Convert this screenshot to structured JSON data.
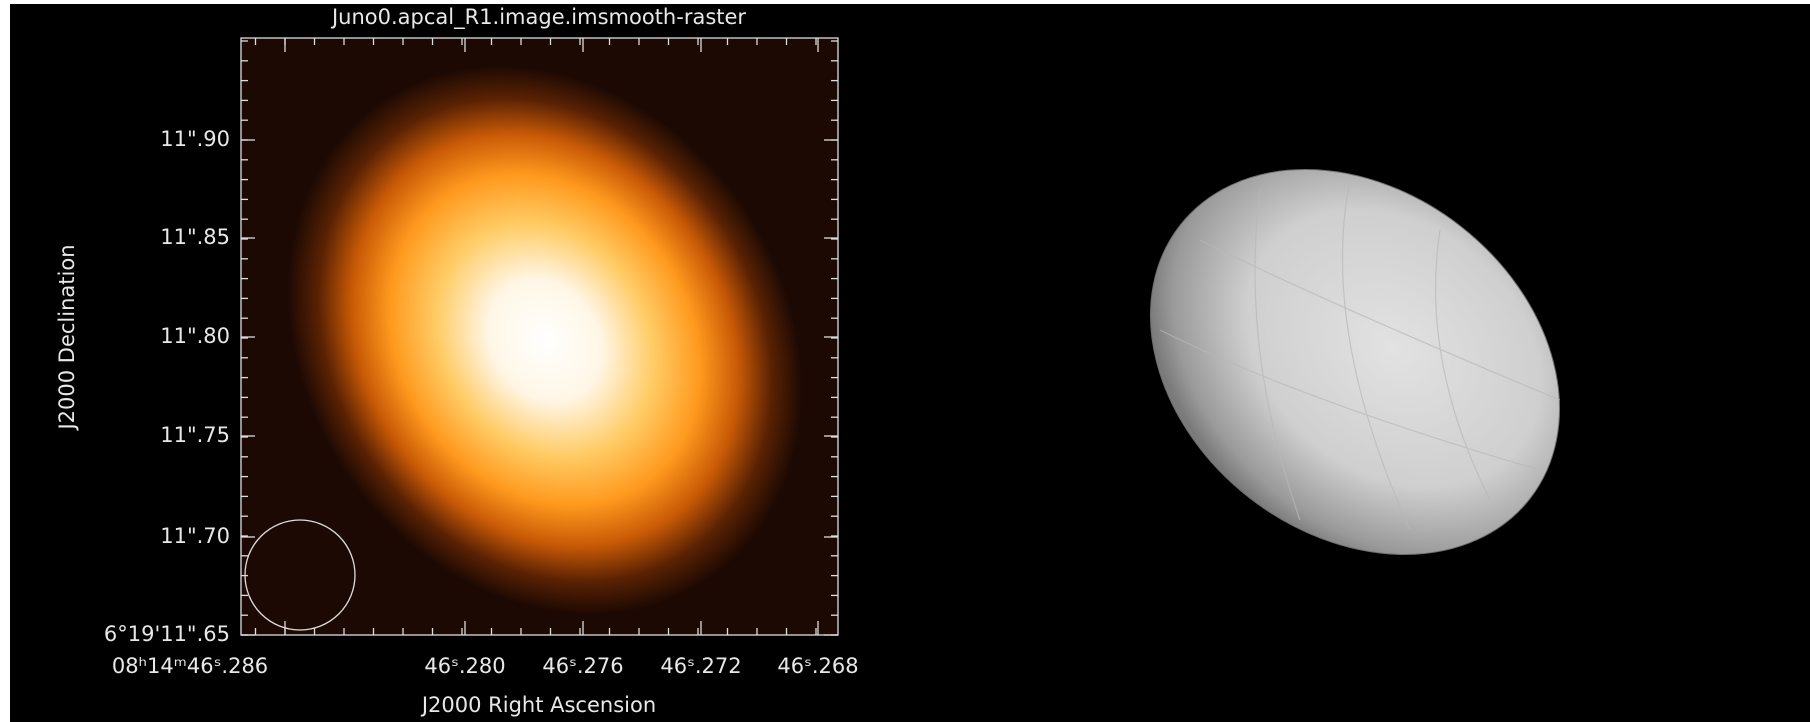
{
  "left_panel": {
    "title": "Juno0.apcal_R1.image.imsmooth-raster",
    "y_label": "J2000 Declination",
    "x_label": "J2000 Right Ascension",
    "y_tick_labels": [
      "11\".90",
      "11\".85",
      "11\".80",
      "11\".75",
      "11\".70",
      "6°19'11\".65"
    ],
    "x_tick_labels": [
      "08ʰ14ᵐ46ˢ.286",
      "46ˢ.280",
      "46ˢ.276",
      "46ˢ.272",
      "46ˢ.268"
    ]
  }
}
